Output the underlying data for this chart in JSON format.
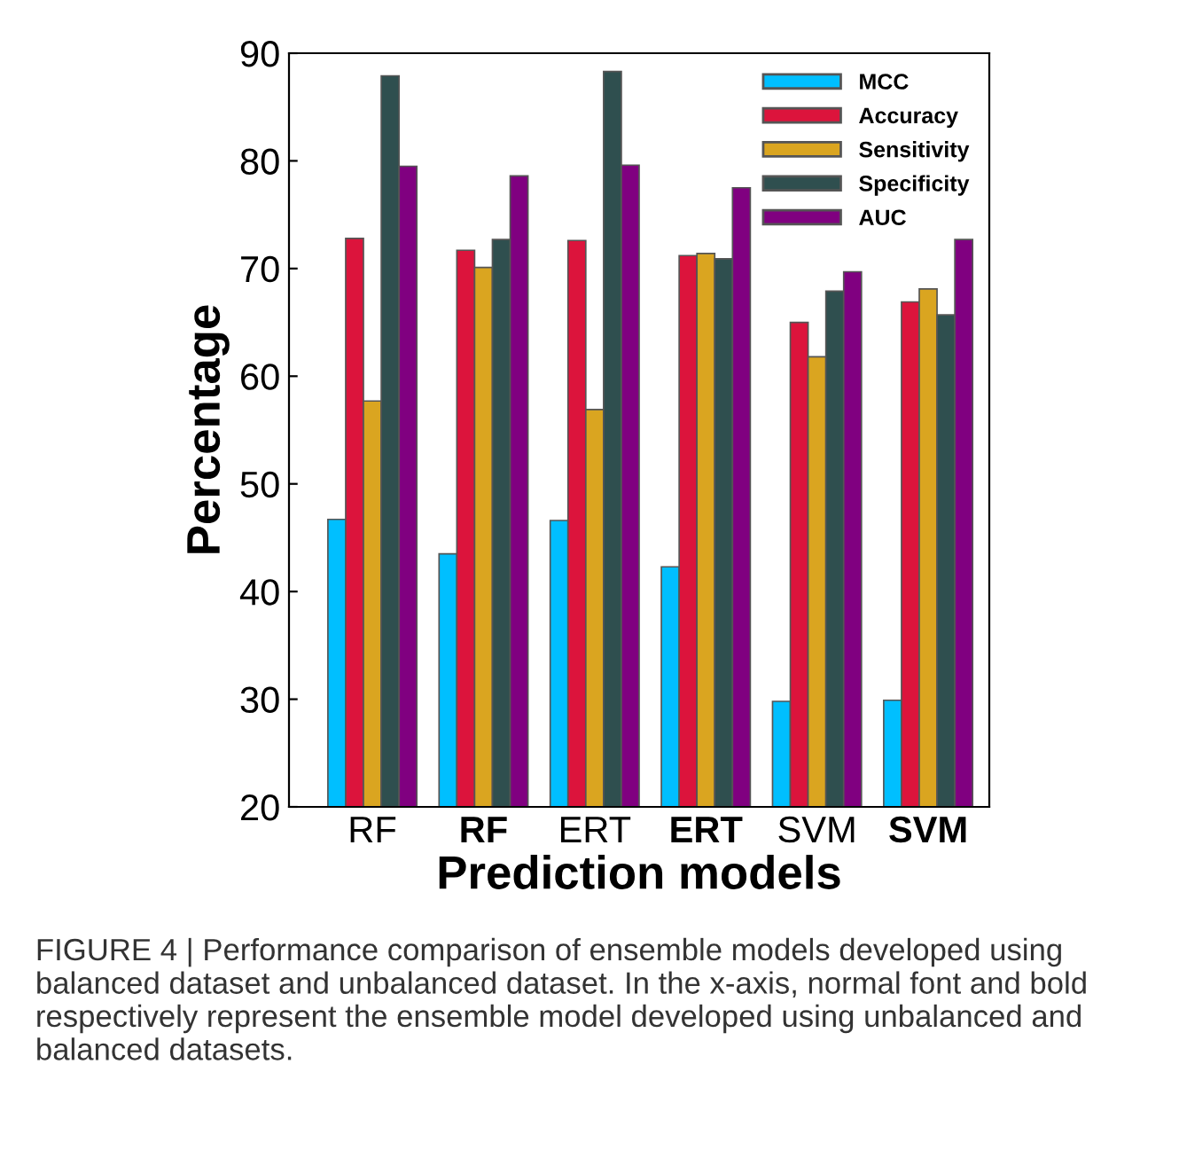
{
  "chart_data": {
    "type": "bar",
    "ylabel": "Percentage",
    "xlabel": "Prediction models",
    "categories": [
      "RF",
      "RF",
      "ERT",
      "ERT",
      "SVM",
      "SVM"
    ],
    "series": [
      {
        "name": "MCC",
        "color": "#00bfff",
        "values": [
          46.7,
          43.5,
          46.6,
          42.3,
          29.8,
          29.9
        ]
      },
      {
        "name": "Accuracy",
        "color": "#dc143c",
        "values": [
          72.8,
          71.7,
          72.6,
          71.2,
          65.0,
          66.9
        ]
      },
      {
        "name": "Sensitivity",
        "color": "#daa520",
        "values": [
          57.7,
          70.1,
          56.9,
          71.4,
          61.8,
          68.1
        ]
      },
      {
        "name": "Specificity",
        "color": "#2f4f4f",
        "values": [
          87.9,
          72.7,
          88.3,
          70.9,
          67.9,
          65.7
        ]
      },
      {
        "name": "AUC",
        "color": "#800080",
        "values": [
          79.5,
          78.6,
          79.6,
          77.5,
          69.7,
          72.7
        ]
      }
    ],
    "ylim": [
      20,
      90
    ],
    "yticks": [
      20,
      30,
      40,
      50,
      60,
      70,
      80,
      90
    ],
    "grid": false,
    "legend": "top right",
    "annotations": [
      "FIGURE 4 | Performance comparison of ensemble models developed using balanced dataset and unbalanced dataset. In the x-axis, normal font and bold respectively represent the ensemble model developed using unbalanced and balanced datasets."
    ]
  }
}
